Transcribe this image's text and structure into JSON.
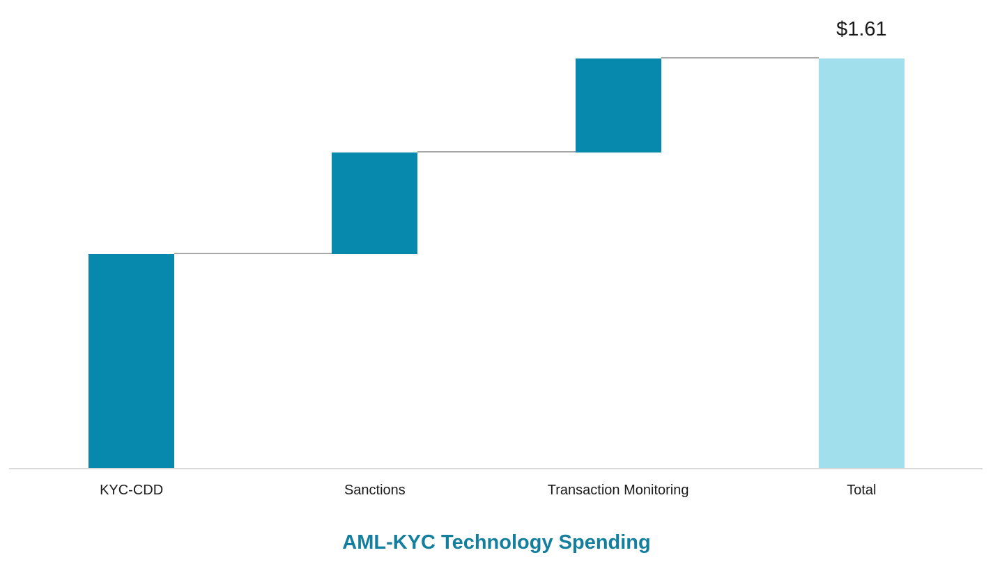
{
  "page": {
    "background": "#ffffff"
  },
  "chart_data": {
    "type": "bar",
    "subtype": "waterfall",
    "title": "AML-KYC Technology Spending",
    "categories": [
      "KYC-CDD",
      "Sanctions",
      "Transaction Monitoring",
      "Total"
    ],
    "values": [
      0.84,
      0.4,
      0.37,
      1.61
    ],
    "bar_roles": [
      "increase",
      "increase",
      "increase",
      "total"
    ],
    "data_labels": [
      "",
      "",
      "",
      "$1.61"
    ],
    "cumulative_levels": [
      0.84,
      1.24,
      1.61,
      1.61
    ],
    "ylim": [
      0,
      1.61
    ],
    "y_axis_visible": false,
    "x_axis_line_visible": true,
    "grid": false,
    "legend": false,
    "connector_lines": true,
    "title_position": "bottom"
  },
  "colors": {
    "segment_bar": "#0689AD",
    "total_bar": "#A2DFEC",
    "connector_line": "#A6A6A6",
    "axis_line": "#D9D9D9",
    "title_text": "#147E9E",
    "label_text": "#1A1A1A"
  }
}
